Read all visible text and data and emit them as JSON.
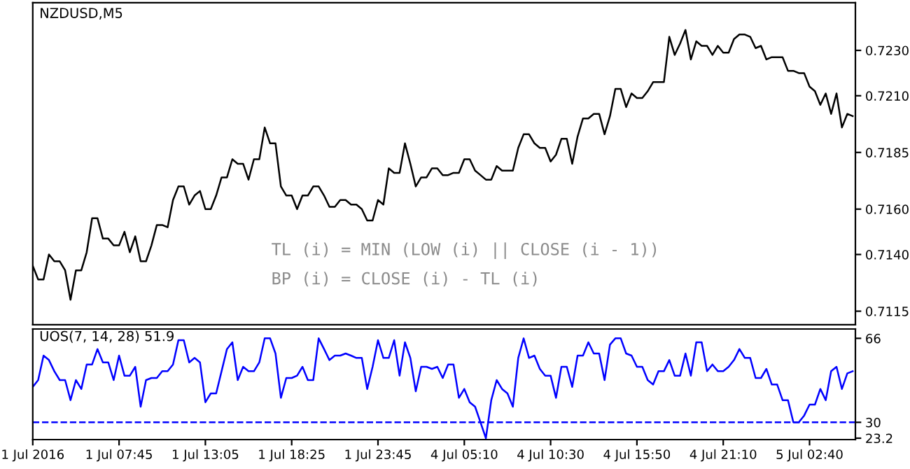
{
  "chart_data": [
    {
      "type": "line",
      "title": "NZDUSD,M5",
      "annotations": [
        "TL (i) = MIN (LOW (i) || CLOSE (i - 1))",
        "BP (i) = CLOSE (i) - TL (i)"
      ],
      "categories": [
        null,
        null,
        null,
        null,
        null,
        null,
        null,
        null,
        null,
        null,
        null,
        null,
        null,
        null,
        null,
        null,
        null,
        null,
        null,
        null,
        null,
        null,
        null,
        null,
        null,
        null,
        null,
        null,
        null,
        null,
        null,
        null,
        null,
        null,
        null,
        null,
        null,
        null,
        null,
        null,
        null,
        null,
        null,
        null,
        null,
        null,
        null,
        null,
        null,
        null,
        null,
        null,
        null,
        null,
        null,
        null,
        null,
        null,
        null,
        null,
        null,
        null,
        null,
        null,
        null,
        null,
        null,
        null,
        null,
        null,
        null,
        null,
        null,
        null,
        null,
        null,
        null,
        null,
        null,
        null,
        null,
        null,
        null,
        null,
        null,
        null,
        null,
        null,
        null,
        null,
        null,
        null,
        null,
        null,
        null,
        null,
        null,
        null,
        null,
        null,
        null,
        null,
        null,
        null,
        null,
        null,
        null,
        null,
        null,
        null,
        null,
        null,
        null,
        null,
        null,
        null,
        null,
        null,
        null,
        null,
        null,
        null,
        null,
        null,
        null,
        null,
        null,
        null,
        null,
        null,
        null,
        null,
        null,
        null,
        null,
        null,
        null,
        null,
        null,
        null,
        null,
        null,
        null,
        null,
        null,
        null,
        null,
        null,
        null,
        null,
        null,
        null,
        null
      ],
      "series": [
        {
          "color": "#000000",
          "values": [
            0.7135,
            0.7129,
            0.7129,
            0.714,
            0.7137,
            0.7137,
            0.7133,
            0.712,
            0.7133,
            0.7133,
            0.7141,
            0.7156,
            0.7156,
            0.7147,
            0.7147,
            0.7144,
            0.7144,
            0.715,
            0.7141,
            0.7148,
            0.7137,
            0.7137,
            0.7144,
            0.7153,
            0.7153,
            0.7152,
            0.7164,
            0.717,
            0.717,
            0.7162,
            0.7166,
            0.7168,
            0.716,
            0.716,
            0.7166,
            0.7174,
            0.7174,
            0.7182,
            0.718,
            0.718,
            0.7173,
            0.7182,
            0.7182,
            0.7196,
            0.7189,
            0.7189,
            0.717,
            0.7166,
            0.7166,
            0.716,
            0.7166,
            0.7166,
            0.717,
            0.717,
            0.7166,
            0.7161,
            0.7161,
            0.7164,
            0.7164,
            0.7162,
            0.7162,
            0.716,
            0.7155,
            0.7155,
            0.7164,
            0.7162,
            0.7178,
            0.7176,
            0.7176,
            0.7189,
            0.718,
            0.717,
            0.7174,
            0.7174,
            0.7178,
            0.7178,
            0.7175,
            0.7175,
            0.7176,
            0.7176,
            0.7182,
            0.7182,
            0.7177,
            0.7175,
            0.7173,
            0.7173,
            0.7179,
            0.7177,
            0.7177,
            0.7177,
            0.7187,
            0.7193,
            0.7193,
            0.7189,
            0.7187,
            0.7187,
            0.7181,
            0.7184,
            0.7191,
            0.7191,
            0.718,
            0.7192,
            0.72,
            0.72,
            0.7202,
            0.7202,
            0.7193,
            0.7201,
            0.7213,
            0.7213,
            0.7205,
            0.7211,
            0.7209,
            0.7209,
            0.7212,
            0.7216,
            0.7216,
            0.7216,
            0.7236,
            0.7228,
            0.7233,
            0.7239,
            0.7226,
            0.7234,
            0.7232,
            0.7232,
            0.7228,
            0.7232,
            0.7229,
            0.7229,
            0.7235,
            0.7237,
            0.7237,
            0.7236,
            0.7231,
            0.7232,
            0.7226,
            0.7227,
            0.7227,
            0.7227,
            0.7221,
            0.7221,
            0.722,
            0.722,
            0.7214,
            0.7212,
            0.7206,
            0.7211,
            0.7202,
            0.7211,
            0.7196,
            0.7202,
            0.7201
          ]
        }
      ],
      "ylim": [
        0.7109,
        0.7251
      ],
      "yticks": [
        {
          "value": 0.7115,
          "label": "0.7115"
        },
        {
          "value": 0.714,
          "label": "0.7140"
        },
        {
          "value": 0.716,
          "label": "0.7160"
        },
        {
          "value": 0.7185,
          "label": "0.7185"
        },
        {
          "value": 0.721,
          "label": "0.7210"
        },
        {
          "value": 0.723,
          "label": "0.7230"
        }
      ],
      "tick_labels": "y",
      "line_style": "solid"
    },
    {
      "type": "line",
      "title": "UOS(7, 14, 28) 51.9",
      "categories": [
        "1 Jul 2016",
        null,
        null,
        null,
        null,
        null,
        null,
        null,
        null,
        null,
        null,
        null,
        null,
        null,
        null,
        null,
        "1 Jul 07:45",
        null,
        null,
        null,
        null,
        null,
        null,
        null,
        null,
        null,
        null,
        null,
        null,
        null,
        null,
        null,
        "1 Jul 13:05",
        null,
        null,
        null,
        null,
        null,
        null,
        null,
        null,
        null,
        null,
        null,
        null,
        null,
        null,
        null,
        "1 Jul 18:25",
        null,
        null,
        null,
        null,
        null,
        null,
        null,
        null,
        null,
        null,
        null,
        null,
        null,
        null,
        null,
        "1 Jul 23:45",
        null,
        null,
        null,
        null,
        null,
        null,
        null,
        null,
        null,
        null,
        null,
        null,
        null,
        null,
        null,
        "4 Jul 05:10",
        null,
        null,
        null,
        null,
        null,
        null,
        null,
        null,
        null,
        null,
        null,
        null,
        null,
        null,
        null,
        "4 Jul 10:30",
        null,
        null,
        null,
        null,
        null,
        null,
        null,
        null,
        null,
        null,
        null,
        null,
        null,
        null,
        null,
        "4 Jul 15:50",
        null,
        null,
        null,
        null,
        null,
        null,
        null,
        null,
        null,
        null,
        null,
        null,
        null,
        null,
        null,
        "4 Jul 21:10",
        null,
        null,
        null,
        null,
        null,
        null,
        null,
        null,
        null,
        null,
        null,
        null,
        null,
        null,
        null,
        "5 Jul 02:40",
        null,
        null,
        null,
        null,
        null,
        null,
        null,
        null
      ],
      "series": [
        {
          "color": "#0000ff",
          "values": [
            45.2,
            48.1,
            58.6,
            56.7,
            51.9,
            48.1,
            48.1,
            39.5,
            48.1,
            44.3,
            54.8,
            54.8,
            61.4,
            55.7,
            55.7,
            48.1,
            58.6,
            50.0,
            50.0,
            53.8,
            36.7,
            48.1,
            49.0,
            49.0,
            51.9,
            51.9,
            54.8,
            65.2,
            65.2,
            55.7,
            57.6,
            55.7,
            38.6,
            42.4,
            42.4,
            51.9,
            61.4,
            64.3,
            48.1,
            53.8,
            51.9,
            51.9,
            55.7,
            66.0,
            66.0,
            59.5,
            40.5,
            49.0,
            49.0,
            50.0,
            53.8,
            48.1,
            48.1,
            66.0,
            61.4,
            56.7,
            58.6,
            58.6,
            59.5,
            58.6,
            57.6,
            57.6,
            44.3,
            53.8,
            65.2,
            57.6,
            57.6,
            65.2,
            50.0,
            64.3,
            57.6,
            43.3,
            53.8,
            53.8,
            52.9,
            53.8,
            49.0,
            54.8,
            54.8,
            40.5,
            44.3,
            38.6,
            36.7,
            30.0,
            23.2,
            39.5,
            48.1,
            44.3,
            42.4,
            36.7,
            57.6,
            66.0,
            57.6,
            58.6,
            52.9,
            50.0,
            50.0,
            40.5,
            53.8,
            53.8,
            45.2,
            58.6,
            58.6,
            64.3,
            59.5,
            59.5,
            48.1,
            63.3,
            66.0,
            66.0,
            59.5,
            58.6,
            53.8,
            53.8,
            48.1,
            46.2,
            51.9,
            51.9,
            56.7,
            50.0,
            50.0,
            59.5,
            50.0,
            64.3,
            64.3,
            51.9,
            54.8,
            51.9,
            51.9,
            53.8,
            56.7,
            61.4,
            57.6,
            57.6,
            49.0,
            49.0,
            52.9,
            46.2,
            46.2,
            39.5,
            39.5,
            30.0,
            30.0,
            32.9,
            37.6,
            37.6,
            44.3,
            39.5,
            51.9,
            53.8,
            44.3,
            51.0,
            51.9
          ]
        }
      ],
      "ylim": [
        22.6,
        70
      ],
      "yticks": [
        23.2,
        30,
        66
      ],
      "ref_lines": [
        {
          "axis": "y",
          "value": 30,
          "color": "#0000ff",
          "line_style": "dashed"
        }
      ],
      "line_style": "solid"
    }
  ]
}
